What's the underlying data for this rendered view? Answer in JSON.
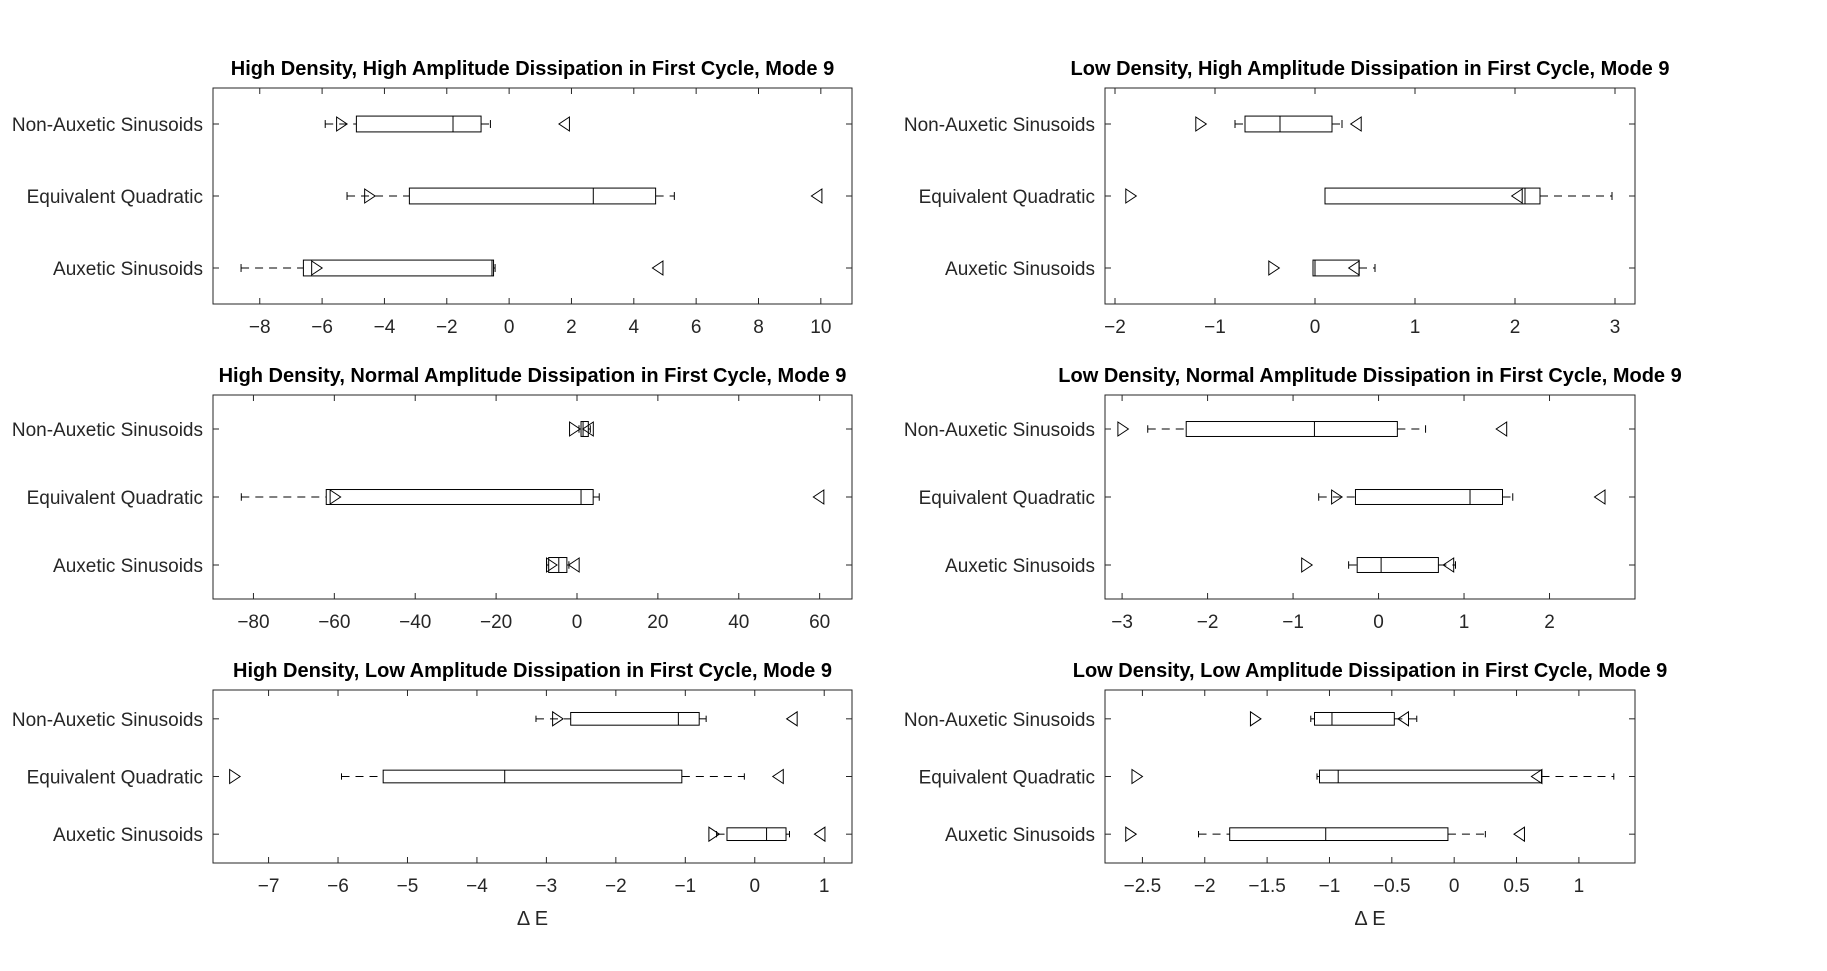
{
  "figure": {
    "background": "#ffffff",
    "axis_color": "#262626",
    "box_color": "#000000"
  },
  "chart_data": [
    {
      "type": "boxplot",
      "orientation": "horizontal",
      "title": "High Density, High Amplitude Dissipation in First Cycle, Mode 9",
      "xlabel": "",
      "xlim": [
        -9.5,
        11
      ],
      "xticks": [
        -8,
        -6,
        -4,
        -2,
        0,
        2,
        4,
        6,
        8,
        10
      ],
      "categories": [
        "Non-Auxetic Sinusoids",
        "Equivalent Quadratic",
        "Auxetic Sinusoids"
      ],
      "boxes": [
        {
          "whisker_low": -5.9,
          "q1": -4.9,
          "median": -1.8,
          "q3": -0.9,
          "whisker_high": -0.6,
          "marker_right": -5.4,
          "marker_left": 1.8
        },
        {
          "whisker_low": -5.2,
          "q1": -3.2,
          "median": 2.7,
          "q3": 4.7,
          "whisker_high": 5.3,
          "marker_right": -4.5,
          "marker_left": 9.9
        },
        {
          "whisker_low": -8.6,
          "q1": -6.6,
          "median": -0.55,
          "q3": -0.5,
          "whisker_high": -0.45,
          "marker_right": -6.2,
          "marker_left": 4.8
        }
      ]
    },
    {
      "type": "boxplot",
      "orientation": "horizontal",
      "title": "Low Density, High Amplitude Dissipation in First Cycle, Mode 9",
      "xlabel": "",
      "xlim": [
        -2.1,
        3.2
      ],
      "xticks": [
        -2,
        -1,
        0,
        1,
        2,
        3
      ],
      "categories": [
        "Non-Auxetic Sinusoids",
        "Equivalent Quadratic",
        "Auxetic Sinusoids"
      ],
      "boxes": [
        {
          "whisker_low": -0.8,
          "q1": -0.7,
          "median": -0.35,
          "q3": 0.17,
          "whisker_high": 0.27,
          "marker_right": -1.15,
          "marker_left": 0.42
        },
        {
          "whisker_low": 0.1,
          "q1": 0.1,
          "median": 2.1,
          "q3": 2.25,
          "whisker_high": 2.97,
          "marker_right": -1.85,
          "marker_left": 2.03
        },
        {
          "whisker_low": -0.02,
          "q1": -0.02,
          "median": 0.0,
          "q3": 0.44,
          "whisker_high": 0.6,
          "marker_right": -0.42,
          "marker_left": 0.4
        }
      ]
    },
    {
      "type": "boxplot",
      "orientation": "horizontal",
      "title": "High Density, Normal Amplitude Dissipation in First Cycle, Mode 9",
      "xlabel": "",
      "xlim": [
        -90,
        68
      ],
      "xticks": [
        -80,
        -60,
        -40,
        -20,
        0,
        20,
        40,
        60
      ],
      "categories": [
        "Non-Auxetic Sinusoids",
        "Equivalent Quadratic",
        "Auxetic Sinusoids"
      ],
      "boxes": [
        {
          "whisker_low": 0.5,
          "q1": 1.0,
          "median": 1.5,
          "q3": 2.8,
          "whisker_high": 3.3,
          "marker_right": -0.8,
          "marker_left": 3.0
        },
        {
          "whisker_low": -83,
          "q1": -62,
          "median": 1.0,
          "q3": 4.0,
          "whisker_high": 5.5,
          "marker_right": -60,
          "marker_left": 60
        },
        {
          "whisker_low": -7.5,
          "q1": -7,
          "median": -4.5,
          "q3": -2.5,
          "whisker_high": -2,
          "marker_right": -6.5,
          "marker_left": -0.5
        }
      ]
    },
    {
      "type": "boxplot",
      "orientation": "horizontal",
      "title": "Low Density, Normal Amplitude Dissipation in First Cycle, Mode 9",
      "xlabel": "",
      "xlim": [
        -3.2,
        3.0
      ],
      "xticks": [
        -3,
        -2,
        -1,
        0,
        1,
        2
      ],
      "categories": [
        "Non-Auxetic Sinusoids",
        "Equivalent Quadratic",
        "Auxetic Sinusoids"
      ],
      "boxes": [
        {
          "whisker_low": -2.7,
          "q1": -2.25,
          "median": -0.75,
          "q3": 0.22,
          "whisker_high": 0.55,
          "marker_right": -3.0,
          "marker_left": 1.45
        },
        {
          "whisker_low": -0.7,
          "q1": -0.27,
          "median": 1.07,
          "q3": 1.45,
          "whisker_high": 1.57,
          "marker_right": -0.5,
          "marker_left": 2.6
        },
        {
          "whisker_low": -0.35,
          "q1": -0.25,
          "median": 0.03,
          "q3": 0.7,
          "whisker_high": 0.9,
          "marker_right": -0.85,
          "marker_left": 0.83
        }
      ]
    },
    {
      "type": "boxplot",
      "orientation": "horizontal",
      "title": "High Density, Low Amplitude Dissipation in First Cycle, Mode 9",
      "xlabel": "Δ E",
      "xlim": [
        -7.8,
        1.4
      ],
      "xticks": [
        -7,
        -6,
        -5,
        -4,
        -3,
        -2,
        -1,
        0,
        1
      ],
      "categories": [
        "Non-Auxetic Sinusoids",
        "Equivalent Quadratic",
        "Auxetic Sinusoids"
      ],
      "boxes": [
        {
          "whisker_low": -3.15,
          "q1": -2.65,
          "median": -1.1,
          "q3": -0.8,
          "whisker_high": -0.7,
          "marker_right": -2.85,
          "marker_left": 0.55
        },
        {
          "whisker_low": -5.95,
          "q1": -5.35,
          "median": -3.6,
          "q3": -1.05,
          "whisker_high": -0.15,
          "marker_right": -7.5,
          "marker_left": 0.35
        },
        {
          "whisker_low": -0.55,
          "q1": -0.4,
          "median": 0.17,
          "q3": 0.45,
          "whisker_high": 0.5,
          "marker_right": -0.6,
          "marker_left": 0.95
        }
      ]
    },
    {
      "type": "boxplot",
      "orientation": "horizontal",
      "title": "Low Density, Low Amplitude Dissipation in First Cycle, Mode 9",
      "xlabel": "Δ E",
      "xlim": [
        -2.8,
        1.45
      ],
      "xticks": [
        -2.5,
        -2,
        -1.5,
        -1,
        -0.5,
        0,
        0.5,
        1
      ],
      "categories": [
        "Non-Auxetic Sinusoids",
        "Equivalent Quadratic",
        "Auxetic Sinusoids"
      ],
      "boxes": [
        {
          "whisker_low": -1.15,
          "q1": -1.12,
          "median": -0.98,
          "q3": -0.48,
          "whisker_high": -0.3,
          "marker_right": -1.6,
          "marker_left": -0.4
        },
        {
          "whisker_low": -1.1,
          "q1": -1.08,
          "median": -0.93,
          "q3": 0.7,
          "whisker_high": 1.28,
          "marker_right": -2.55,
          "marker_left": 0.67
        },
        {
          "whisker_low": -2.05,
          "q1": -1.8,
          "median": -1.03,
          "q3": -0.05,
          "whisker_high": 0.25,
          "marker_right": -2.6,
          "marker_left": 0.53
        }
      ]
    }
  ]
}
